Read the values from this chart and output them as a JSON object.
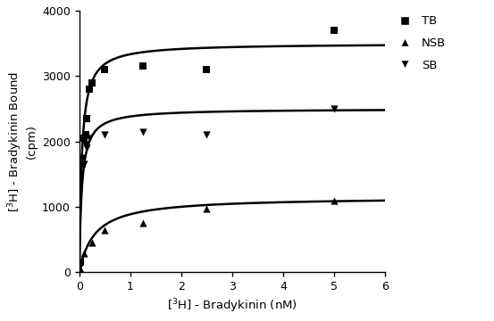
{
  "tb_x": [
    0.025,
    0.05,
    0.1,
    0.125,
    0.15,
    0.2,
    0.25,
    0.5,
    1.25,
    2.5,
    5.0
  ],
  "tb_y": [
    150,
    1650,
    2050,
    2100,
    2350,
    2800,
    2900,
    3100,
    3150,
    3100,
    3700
  ],
  "nsb_x": [
    0.025,
    0.1,
    0.25,
    0.5,
    1.25,
    2.5,
    5.0
  ],
  "nsb_y": [
    50,
    290,
    450,
    650,
    750,
    970,
    1100
  ],
  "sb_x": [
    0.025,
    0.05,
    0.1,
    0.125,
    0.15,
    0.2,
    0.5,
    1.25,
    2.5,
    5.0
  ],
  "sb_y": [
    100,
    1750,
    1650,
    1950,
    1900,
    2050,
    2100,
    2150,
    2100,
    2500
  ],
  "tb_Bmax": 3500,
  "tb_Kd": 0.05,
  "nsb_Bmax": 1150,
  "nsb_Kd": 0.3,
  "sb_Bmax": 2500,
  "sb_Kd": 0.05,
  "xlim": [
    0,
    6
  ],
  "ylim": [
    0,
    4000
  ],
  "xticks": [
    0,
    1,
    2,
    3,
    4,
    5,
    6
  ],
  "yticks": [
    0,
    1000,
    2000,
    3000,
    4000
  ],
  "xlabel": "[$^{3}$H] - Bradykinin (nM)",
  "ylabel": "[$^{3}$H] - Bradykinin Bound\n(cpm)",
  "color": "#000000",
  "bg_color": "#ffffff"
}
